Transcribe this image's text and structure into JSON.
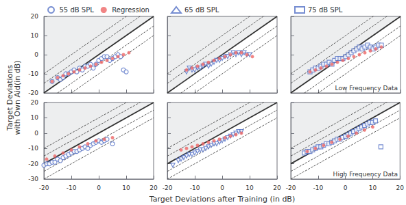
{
  "chart_data": {
    "type": "scatter",
    "xlabel": "Target Deviations after Training (in dB)",
    "ylabel": "Target Deviations\nwith Own Aid(in dB)",
    "grid": false,
    "diagonal_offsets": [
      -10,
      -5,
      0,
      5,
      10
    ],
    "panels": [
      [
        {
          "xlim": [
            -20,
            20
          ],
          "ylim": [
            -20,
            20
          ],
          "xticks": [
            -20,
            -10,
            0,
            10,
            20
          ],
          "yticks": [
            -20,
            -10,
            0,
            10,
            20
          ],
          "tick_labels": "y",
          "legend": "top",
          "series": [
            {
              "name": "55 dB SPL",
              "type": "scatter",
              "marker": "open circle",
              "x": [
                -17,
                -15,
                -14,
                -13,
                -12,
                -11,
                -10,
                -9,
                -8,
                -7,
                -6,
                -5,
                -4,
                -3,
                -2,
                -1,
                0,
                1,
                2,
                3,
                4,
                5,
                6,
                7,
                8,
                9,
                10
              ],
              "values": [
                -14,
                -12,
                -13,
                -12,
                -10,
                -10,
                -9,
                -8,
                -9,
                -7,
                -8,
                -6,
                -6,
                -5,
                -7,
                -5,
                -3,
                -2,
                -1,
                -1,
                -3,
                -2,
                -1,
                0,
                -1,
                -8,
                -9
              ]
            },
            {
              "name": "Regression",
              "type": "scatter",
              "marker": "filled circle",
              "x": [
                -17,
                -15,
                -13,
                -11,
                -9,
                -7,
                -5,
                -3,
                -1,
                1,
                3,
                5,
                7,
                9,
                11
              ],
              "values": [
                -14,
                -12,
                -11,
                -10,
                -9,
                -8,
                -7,
                -6,
                -5,
                -4,
                -3,
                -2,
                -1,
                0,
                1
              ]
            }
          ]
        },
        {
          "xlim": [
            -20,
            20
          ],
          "ylim": [
            -20,
            20
          ],
          "xticks": [
            -20,
            -10,
            0,
            10,
            20
          ],
          "yticks": [
            -20,
            -10,
            0,
            10,
            20
          ],
          "tick_labels": false,
          "legend": "top",
          "series": [
            {
              "name": "65 dB SPL",
              "type": "scatter",
              "marker": "open triangle down",
              "x": [
                -13,
                -12,
                -11,
                -10,
                -9,
                -8,
                -7,
                -6,
                -5,
                -4,
                -3,
                -2,
                -1,
                0,
                1,
                2,
                3,
                4,
                5,
                6,
                7,
                8,
                9,
                10
              ],
              "values": [
                -9,
                -7,
                -8,
                -8,
                -7,
                -7,
                -6,
                -5,
                -6,
                -5,
                -4,
                -3,
                -3,
                -2,
                -1,
                -1,
                0,
                1,
                0,
                1,
                0,
                1,
                0,
                0
              ]
            },
            {
              "type": "scatter",
              "marker": "filled circle",
              "x": [
                -13,
                -11,
                -9,
                -7,
                -5,
                -3,
                -1,
                1,
                3,
                5,
                7,
                9,
                11
              ],
              "values": [
                -8,
                -7,
                -6,
                -5,
                -4,
                -3,
                -2,
                -1,
                0,
                1,
                1,
                0,
                -1
              ]
            }
          ]
        },
        {
          "xlim": [
            -20,
            20
          ],
          "ylim": [
            -20,
            20
          ],
          "xticks": [
            -20,
            -10,
            0,
            10,
            20
          ],
          "yticks": [
            -20,
            -10,
            0,
            10,
            20
          ],
          "tick_labels": false,
          "legend": "top",
          "annotations": [
            "Low Frequency Data"
          ],
          "series": [
            {
              "name": "75 dB SPL",
              "type": "scatter",
              "marker": "open square",
              "x": [
                -13,
                -12,
                -11,
                -10,
                -9,
                -8,
                -7,
                -6,
                -5,
                -4,
                -3,
                -2,
                -1,
                0,
                1,
                2,
                3,
                4,
                5,
                6,
                7,
                8,
                9,
                10,
                11,
                12,
                13
              ],
              "values": [
                -9,
                -8,
                -7,
                -7,
                -6,
                -5,
                -5,
                -4,
                -5,
                -3,
                -2,
                -2,
                -2,
                -1,
                0,
                1,
                2,
                3,
                4,
                3,
                4,
                5,
                4,
                3,
                4,
                5,
                5
              ]
            },
            {
              "type": "scatter",
              "marker": "filled circle",
              "x": [
                -13,
                -11,
                -9,
                -7,
                -5,
                -3,
                -1,
                1,
                3,
                5,
                7,
                9,
                11,
                13
              ],
              "values": [
                -9,
                -8,
                -7,
                -6,
                -5,
                -4,
                -3,
                -2,
                -1,
                0,
                1,
                2,
                3,
                4
              ]
            }
          ]
        }
      ],
      [
        {
          "xlim": [
            -20,
            20
          ],
          "ylim": [
            -30,
            20
          ],
          "xticks": [
            -20,
            -10,
            0,
            10,
            20
          ],
          "yticks": [
            -30,
            -20,
            -10,
            0,
            10,
            20
          ],
          "tick_labels": true,
          "series": [
            {
              "type": "scatter",
              "marker": "open circle",
              "x": [
                -20,
                -19,
                -18,
                -17,
                -16,
                -15,
                -14,
                -13,
                -12,
                -11,
                -10,
                -9,
                -8,
                -7,
                -6,
                -5,
                -4,
                -3,
                -2,
                -1,
                0,
                1,
                2,
                3,
                5
              ],
              "values": [
                -21,
                -20,
                -20,
                -19,
                -19,
                -17,
                -18,
                -16,
                -15,
                -14,
                -13,
                -12,
                -12,
                -11,
                -10,
                -9,
                -10,
                -8,
                -7,
                -6,
                -5,
                -6,
                -5,
                -4,
                -7
              ]
            },
            {
              "type": "scatter",
              "marker": "filled circle",
              "x": [
                -19,
                -16,
                -13,
                -10,
                -7,
                -4,
                -1,
                2,
                5
              ],
              "values": [
                -17,
                -15,
                -13,
                -11,
                -9,
                -7,
                -5,
                -4,
                -3
              ]
            }
          ]
        },
        {
          "xlim": [
            -20,
            20
          ],
          "ylim": [
            -30,
            20
          ],
          "xticks": [
            -20,
            -10,
            0,
            10,
            20
          ],
          "yticks": [
            -30,
            -20,
            -10,
            0,
            10,
            20
          ],
          "tick_labels": "x",
          "series": [
            {
              "type": "scatter",
              "marker": "open triangle down",
              "x": [
                -18,
                -16,
                -15,
                -14,
                -13,
                -12,
                -11,
                -10,
                -9,
                -8,
                -7,
                -6,
                -5,
                -4,
                -3,
                -2,
                -1,
                0,
                1,
                2,
                3,
                4,
                5,
                6,
                7
              ],
              "values": [
                -21,
                -18,
                -17,
                -16,
                -15,
                -14,
                -14,
                -13,
                -12,
                -11,
                -11,
                -10,
                -9,
                -8,
                -7,
                -7,
                -6,
                -5,
                -4,
                -3,
                -2,
                -1,
                0,
                1,
                1
              ]
            },
            {
              "type": "scatter",
              "marker": "filled circle",
              "x": [
                -15,
                -13,
                -11,
                -9,
                -7,
                -5,
                -3,
                -1,
                1,
                3,
                5,
                7
              ],
              "values": [
                -11,
                -10,
                -9,
                -8,
                -7,
                -6,
                -5,
                -4,
                -3,
                -2,
                -1,
                0
              ]
            }
          ]
        },
        {
          "xlim": [
            -20,
            20
          ],
          "ylim": [
            -30,
            20
          ],
          "xticks": [
            -20,
            -10,
            0,
            10,
            20
          ],
          "yticks": [
            -30,
            -20,
            -10,
            0,
            10,
            20
          ],
          "tick_labels": "x",
          "annotations": [
            "High Frequency Data"
          ],
          "series": [
            {
              "type": "scatter",
              "marker": "open square",
              "x": [
                -15,
                -14,
                -13,
                -12,
                -11,
                -10,
                -9,
                -8,
                -7,
                -6,
                -5,
                -4,
                -3,
                -2,
                -1,
                0,
                1,
                2,
                3,
                4,
                5,
                6,
                7,
                8,
                9,
                10,
                11,
                13
              ],
              "values": [
                -13,
                -12,
                -12,
                -11,
                -10,
                -9,
                -9,
                -8,
                -7,
                -7,
                -6,
                -5,
                -4,
                -4,
                -3,
                -2,
                -1,
                0,
                1,
                2,
                3,
                4,
                5,
                6,
                7,
                7,
                8,
                -9
              ]
            },
            {
              "type": "scatter",
              "marker": "filled circle",
              "x": [
                -14,
                -11,
                -8,
                -5,
                -2,
                1,
                4,
                7,
                10
              ],
              "values": [
                -12,
                -10,
                -8,
                -6,
                -4,
                -2,
                0,
                2,
                4
              ]
            }
          ]
        }
      ]
    ]
  }
}
